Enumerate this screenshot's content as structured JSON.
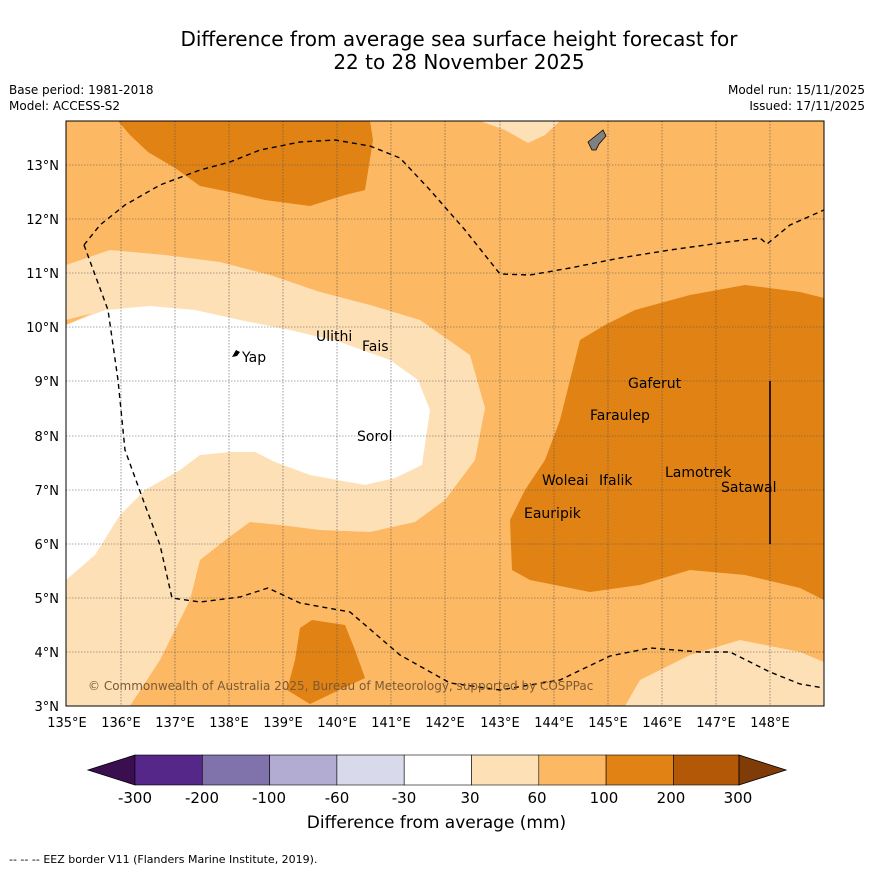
{
  "title": {
    "line1": "Difference from average sea surface height forecast for",
    "line2": "22 to 28 November 2025"
  },
  "meta": {
    "base_period": "Base period: 1981-2018",
    "model": "Model: ACCESS-S2",
    "model_run": "Model run: 15/11/2025",
    "issued": "Issued: 17/11/2025"
  },
  "axes": {
    "lon_ticks": [
      "135°E",
      "136°E",
      "137°E",
      "138°E",
      "139°E",
      "140°E",
      "141°E",
      "142°E",
      "143°E",
      "144°E",
      "145°E",
      "146°E",
      "147°E",
      "148°E"
    ],
    "lat_ticks": [
      "3°N",
      "4°N",
      "5°N",
      "6°N",
      "7°N",
      "8°N",
      "9°N",
      "10°N",
      "11°N",
      "12°N",
      "13°N"
    ]
  },
  "places": [
    {
      "name": "Yap"
    },
    {
      "name": "Ulithi"
    },
    {
      "name": "Fais"
    },
    {
      "name": "Sorol"
    },
    {
      "name": "Gaferut"
    },
    {
      "name": "Faraulep"
    },
    {
      "name": "Woleai"
    },
    {
      "name": "Ifalik"
    },
    {
      "name": "Lamotrek"
    },
    {
      "name": "Satawal"
    },
    {
      "name": "Eauripik"
    }
  ],
  "copyright": "© Commonwealth of Australia 2025, Bureau of Meteorology, supported by COSPPac",
  "colorbar": {
    "ticks": [
      "-300",
      "-200",
      "-100",
      "-60",
      "-30",
      "30",
      "60",
      "100",
      "200",
      "300"
    ],
    "colors": [
      "#3b0f4f",
      "#542788",
      "#8073ac",
      "#b2abd2",
      "#d8daeb",
      "#ffffff",
      "#fee0b6",
      "#fdb863",
      "#e08214",
      "#b35806",
      "#7f3b08"
    ],
    "label": "Difference from average (mm)"
  },
  "legend": {
    "eez_dash": "--  --  --",
    "eez_text": "EEZ border V11 (Flanders Marine Institute, 2019)."
  }
}
